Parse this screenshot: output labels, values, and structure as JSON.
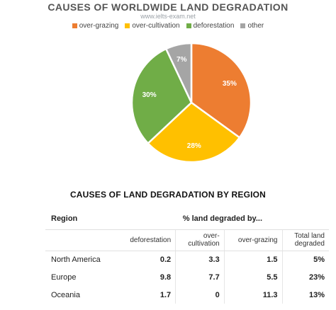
{
  "pie_title": "CAUSES OF WORLDWIDE LAND DEGRADATION",
  "watermark": "www.ielts-exam.net",
  "chart_data": [
    {
      "type": "pie",
      "title": "CAUSES OF WORLDWIDE LAND DEGRADATION",
      "legend_placement": "top",
      "categories": [
        "over-grazing",
        "over-cultivation",
        "deforestation",
        "other"
      ],
      "values": [
        35,
        28,
        30,
        7
      ],
      "labels": [
        "35%",
        "28%",
        "30%",
        "7%"
      ],
      "colors": [
        "#ED7D31",
        "#FFC000",
        "#70AD47",
        "#A5A5A5"
      ]
    },
    {
      "type": "table",
      "title": "CAUSES OF LAND DEGRADATION BY REGION",
      "row_header": "Region",
      "group_header": "% land degraded by...",
      "columns": [
        "deforestation",
        "over-cultivation",
        "over-grazing",
        "Total land degraded"
      ],
      "column_lines": [
        [
          "deforestation"
        ],
        [
          "over-",
          "cultivation"
        ],
        [
          "over-grazing"
        ],
        [
          "Total land",
          "degraded"
        ]
      ],
      "rows": [
        {
          "region": "North America",
          "values": [
            "0.2",
            "3.3",
            "1.5",
            "5%"
          ]
        },
        {
          "region": "Europe",
          "values": [
            "9.8",
            "7.7",
            "5.5",
            "23%"
          ]
        },
        {
          "region": "Oceania",
          "values": [
            "1.7",
            "0",
            "11.3",
            "13%"
          ]
        }
      ]
    }
  ]
}
